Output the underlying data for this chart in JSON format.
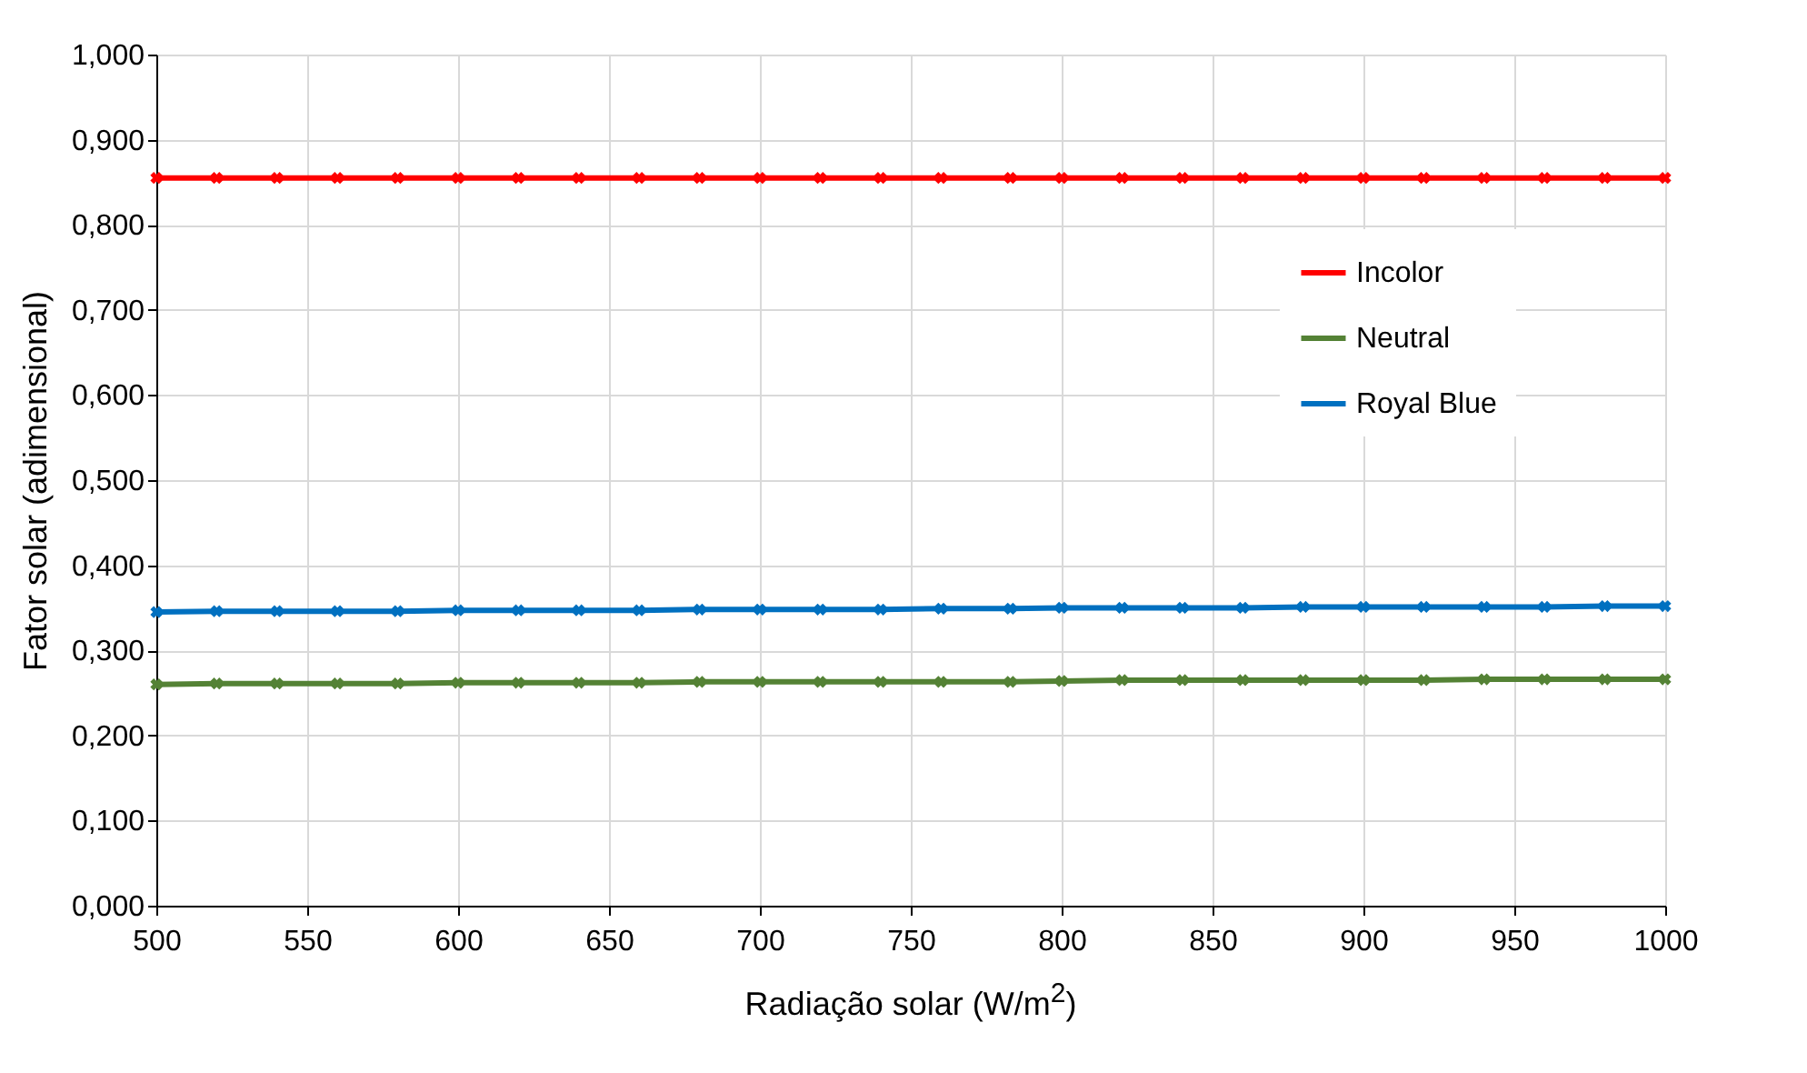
{
  "chart_data": {
    "type": "line",
    "xlabel": "Radiação solar (W/m$^{2}$)",
    "ylabel": "Fator solar (adimensional)",
    "x": [
      500,
      520,
      540,
      560,
      580,
      600,
      620,
      640,
      660,
      680,
      700,
      720,
      740,
      760,
      783,
      800,
      820,
      840,
      860,
      880,
      900,
      920,
      940,
      960,
      980,
      1000
    ],
    "series": [
      {
        "name": "Incolor",
        "color": "#ff0000",
        "values": [
          0.855,
          0.855,
          0.855,
          0.855,
          0.855,
          0.855,
          0.855,
          0.855,
          0.855,
          0.855,
          0.855,
          0.855,
          0.855,
          0.855,
          0.855,
          0.855,
          0.855,
          0.855,
          0.855,
          0.855,
          0.855,
          0.855,
          0.855,
          0.855,
          0.855,
          0.855
        ]
      },
      {
        "name": "Neutral",
        "color": "#548235",
        "values": [
          0.26,
          0.261,
          0.261,
          0.261,
          0.261,
          0.262,
          0.262,
          0.262,
          0.262,
          0.263,
          0.263,
          0.263,
          0.263,
          0.263,
          0.263,
          0.264,
          0.265,
          0.265,
          0.265,
          0.265,
          0.265,
          0.265,
          0.266,
          0.266,
          0.266,
          0.266
        ]
      },
      {
        "name": "Royal Blue",
        "color": "#0070c0",
        "values": [
          0.345,
          0.346,
          0.346,
          0.346,
          0.346,
          0.347,
          0.347,
          0.347,
          0.347,
          0.348,
          0.348,
          0.348,
          0.348,
          0.349,
          0.349,
          0.35,
          0.35,
          0.35,
          0.35,
          0.351,
          0.351,
          0.351,
          0.351,
          0.351,
          0.352,
          0.352
        ]
      }
    ],
    "xlim": [
      500,
      1000
    ],
    "xticks": [
      500,
      550,
      600,
      650,
      700,
      750,
      800,
      850,
      900,
      950,
      1000
    ],
    "ylim": [
      0,
      1
    ],
    "yticks": [
      {
        "value": 0,
        "label": "0,000"
      },
      {
        "value": 0.1,
        "label": "0,100"
      },
      {
        "value": 0.2,
        "label": "0,200"
      },
      {
        "value": 0.3,
        "label": "0,300"
      },
      {
        "value": 0.4,
        "label": "0,400"
      },
      {
        "value": 0.5,
        "label": "0,500"
      },
      {
        "value": 0.6,
        "label": "0,600"
      },
      {
        "value": 0.7,
        "label": "0,700"
      },
      {
        "value": 0.8,
        "label": "0,800"
      },
      {
        "value": 0.9,
        "label": "0,900"
      },
      {
        "value": 1,
        "label": "1,000"
      }
    ],
    "grid": true,
    "legend": "right",
    "marker": "cross",
    "line_style": "solid"
  }
}
